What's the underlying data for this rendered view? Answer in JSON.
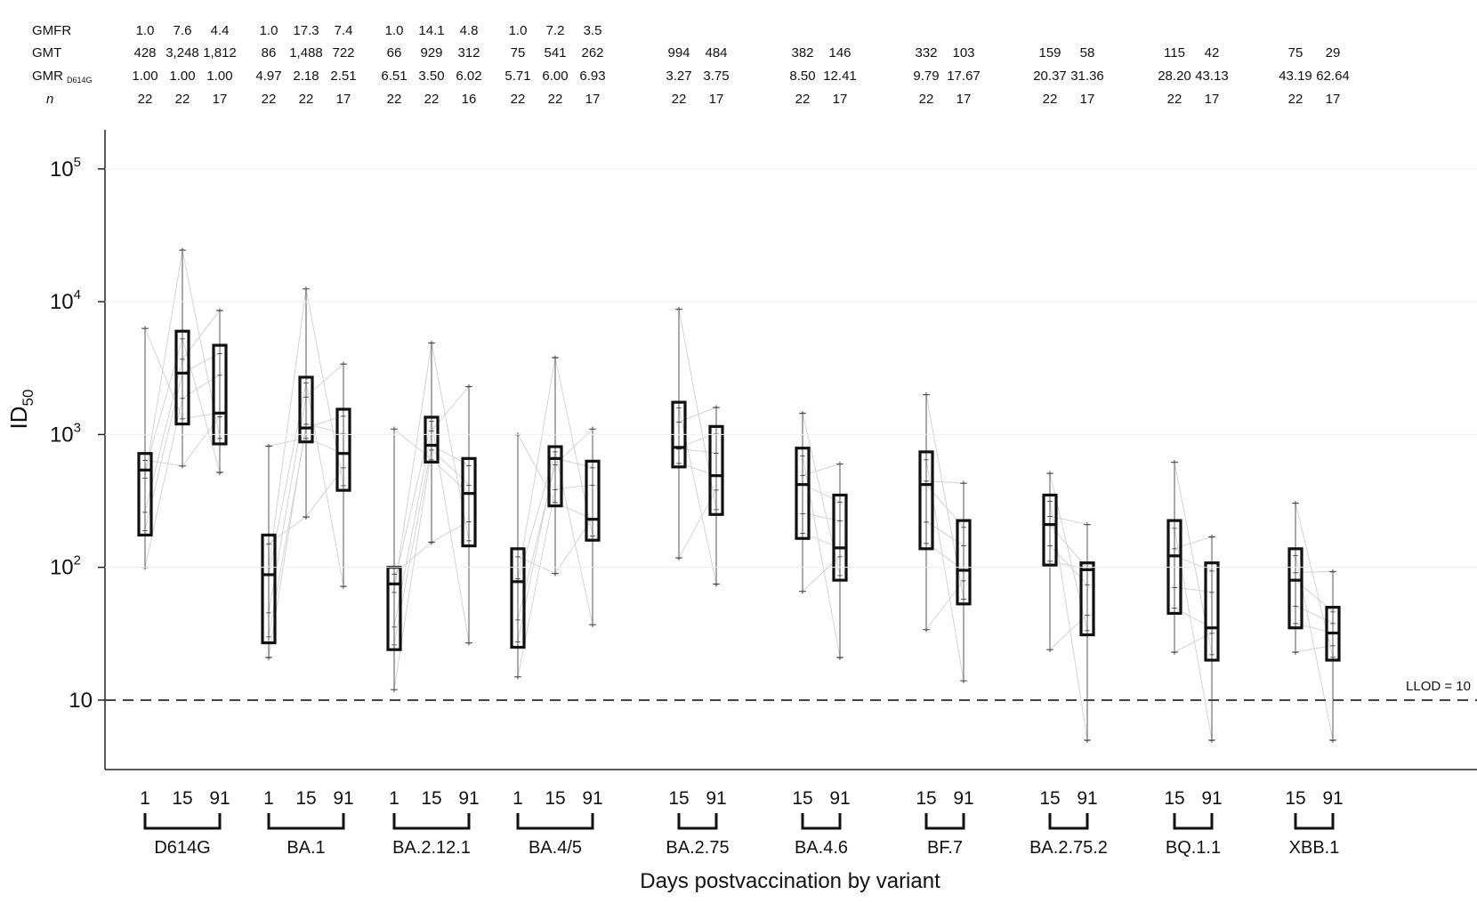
{
  "chart_data": {
    "type": "box",
    "ylabel": "ID",
    "ylabel_subscript": "50",
    "xlabel": "Days postvaccination by variant",
    "y_scale": "log",
    "ylim": [
      3,
      400000
    ],
    "y_ticks": [
      {
        "value": 10,
        "base": "10",
        "exp": ""
      },
      {
        "value": 100,
        "base": "10",
        "exp": "2"
      },
      {
        "value": 1000,
        "base": "10",
        "exp": "3"
      },
      {
        "value": 10000,
        "base": "10",
        "exp": "4"
      },
      {
        "value": 100000,
        "base": "10",
        "exp": "5"
      }
    ],
    "llod": {
      "value": 10,
      "label": "LLOD = 10"
    },
    "row_labels": [
      "GMFR",
      "GMT",
      "GMR",
      "n"
    ],
    "gmr_subscript": "D614G",
    "groups": [
      {
        "variant": "D614G",
        "days": [
          {
            "day": "1",
            "gmfr": "1.0",
            "gmt": "428",
            "gmr": "1.00",
            "n": "22",
            "box": {
              "whislo": 100,
              "q1": 175,
              "med": 540,
              "q3": 720,
              "whishi": 6300
            }
          },
          {
            "day": "15",
            "gmfr": "7.6",
            "gmt": "3,248",
            "gmr": "1.00",
            "n": "22",
            "box": {
              "whislo": 580,
              "q1": 1200,
              "med": 2900,
              "q3": 6000,
              "whishi": 24500
            }
          },
          {
            "day": "91",
            "gmfr": "4.4",
            "gmt": "1,812",
            "gmr": "1.00",
            "n": "17",
            "box": {
              "whislo": 520,
              "q1": 850,
              "med": 1450,
              "q3": 4700,
              "whishi": 8600
            }
          }
        ]
      },
      {
        "variant": "BA.1",
        "days": [
          {
            "day": "1",
            "gmfr": "1.0",
            "gmt": "86",
            "gmr": "4.97",
            "n": "22",
            "box": {
              "whislo": 21,
              "q1": 27,
              "med": 88,
              "q3": 175,
              "whishi": 820
            }
          },
          {
            "day": "15",
            "gmfr": "17.3",
            "gmt": "1,488",
            "gmr": "2.18",
            "n": "22",
            "box": {
              "whislo": 240,
              "q1": 880,
              "med": 1120,
              "q3": 2700,
              "whishi": 12500
            }
          },
          {
            "day": "91",
            "gmfr": "7.4",
            "gmt": "722",
            "gmr": "2.51",
            "n": "17",
            "box": {
              "whislo": 72,
              "q1": 380,
              "med": 720,
              "q3": 1550,
              "whishi": 3400
            }
          }
        ]
      },
      {
        "variant": "BA.2.12.1",
        "days": [
          {
            "day": "1",
            "gmfr": "1.0",
            "gmt": "66",
            "gmr": "6.51",
            "n": "22",
            "box": {
              "whislo": 12,
              "q1": 24,
              "med": 75,
              "q3": 100,
              "whishi": 1100
            }
          },
          {
            "day": "15",
            "gmfr": "14.1",
            "gmt": "929",
            "gmr": "3.50",
            "n": "22",
            "box": {
              "whislo": 155,
              "q1": 620,
              "med": 830,
              "q3": 1350,
              "whishi": 4900
            }
          },
          {
            "day": "91",
            "gmfr": "4.8",
            "gmt": "312",
            "gmr": "6.02",
            "n": "16",
            "box": {
              "whislo": 27,
              "q1": 145,
              "med": 360,
              "q3": 660,
              "whishi": 2300
            }
          }
        ]
      },
      {
        "variant": "BA.4/5",
        "days": [
          {
            "day": "1",
            "gmfr": "1.0",
            "gmt": "75",
            "gmr": "5.71",
            "n": "22",
            "box": {
              "whislo": 15,
              "q1": 25,
              "med": 78,
              "q3": 138,
              "whishi": 1000
            }
          },
          {
            "day": "15",
            "gmfr": "7.2",
            "gmt": "541",
            "gmr": "6.00",
            "n": "22",
            "box": {
              "whislo": 90,
              "q1": 290,
              "med": 660,
              "q3": 810,
              "whishi": 3800
            }
          },
          {
            "day": "91",
            "gmfr": "3.5",
            "gmt": "262",
            "gmr": "6.93",
            "n": "17",
            "box": {
              "whislo": 37,
              "q1": 160,
              "med": 230,
              "q3": 630,
              "whishi": 1100
            }
          }
        ]
      },
      {
        "variant": "BA.2.75",
        "days": [
          {
            "day": "15",
            "gmfr": "",
            "gmt": "994",
            "gmr": "3.27",
            "n": "22",
            "box": {
              "whislo": 118,
              "q1": 570,
              "med": 800,
              "q3": 1750,
              "whishi": 8800
            }
          },
          {
            "day": "91",
            "gmfr": "",
            "gmt": "484",
            "gmr": "3.75",
            "n": "17",
            "box": {
              "whislo": 75,
              "q1": 250,
              "med": 490,
              "q3": 1150,
              "whishi": 1600
            }
          }
        ]
      },
      {
        "variant": "BA.4.6",
        "days": [
          {
            "day": "15",
            "gmfr": "",
            "gmt": "382",
            "gmr": "8.50",
            "n": "22",
            "box": {
              "whislo": 66,
              "q1": 165,
              "med": 420,
              "q3": 790,
              "whishi": 1450
            }
          },
          {
            "day": "91",
            "gmfr": "",
            "gmt": "146",
            "gmr": "12.41",
            "n": "17",
            "box": {
              "whislo": 21,
              "q1": 80,
              "med": 140,
              "q3": 350,
              "whishi": 600
            }
          }
        ]
      },
      {
        "variant": "BF.7",
        "days": [
          {
            "day": "15",
            "gmfr": "",
            "gmt": "332",
            "gmr": "9.79",
            "n": "22",
            "box": {
              "whislo": 34,
              "q1": 138,
              "med": 420,
              "q3": 740,
              "whishi": 2000
            }
          },
          {
            "day": "91",
            "gmfr": "",
            "gmt": "103",
            "gmr": "17.67",
            "n": "17",
            "box": {
              "whislo": 14,
              "q1": 53,
              "med": 95,
              "q3": 225,
              "whishi": 430
            }
          }
        ]
      },
      {
        "variant": "BA.2.75.2",
        "days": [
          {
            "day": "15",
            "gmfr": "",
            "gmt": "159",
            "gmr": "20.37",
            "n": "22",
            "box": {
              "whislo": 24,
              "q1": 104,
              "med": 210,
              "q3": 350,
              "whishi": 510
            }
          },
          {
            "day": "91",
            "gmfr": "",
            "gmt": "58",
            "gmr": "31.36",
            "n": "17",
            "box": {
              "whislo": 5,
              "q1": 31,
              "med": 96,
              "q3": 108,
              "whishi": 210
            }
          }
        ]
      },
      {
        "variant": "BQ.1.1",
        "days": [
          {
            "day": "15",
            "gmfr": "",
            "gmt": "115",
            "gmr": "28.20",
            "n": "22",
            "box": {
              "whislo": 23,
              "q1": 45,
              "med": 122,
              "q3": 225,
              "whishi": 620
            }
          },
          {
            "day": "91",
            "gmfr": "",
            "gmt": "42",
            "gmr": "43.13",
            "n": "17",
            "box": {
              "whislo": 5,
              "q1": 20,
              "med": 35,
              "q3": 108,
              "whishi": 170
            }
          }
        ]
      },
      {
        "variant": "XBB.1",
        "days": [
          {
            "day": "15",
            "gmfr": "",
            "gmt": "75",
            "gmr": "43.19",
            "n": "22",
            "box": {
              "whislo": 23,
              "q1": 35,
              "med": 80,
              "q3": 138,
              "whishi": 305
            }
          },
          {
            "day": "91",
            "gmfr": "",
            "gmt": "29",
            "gmr": "62.64",
            "n": "17",
            "box": {
              "whislo": 5,
              "q1": 20,
              "med": 32,
              "q3": 50,
              "whishi": 93
            }
          }
        ]
      }
    ]
  }
}
